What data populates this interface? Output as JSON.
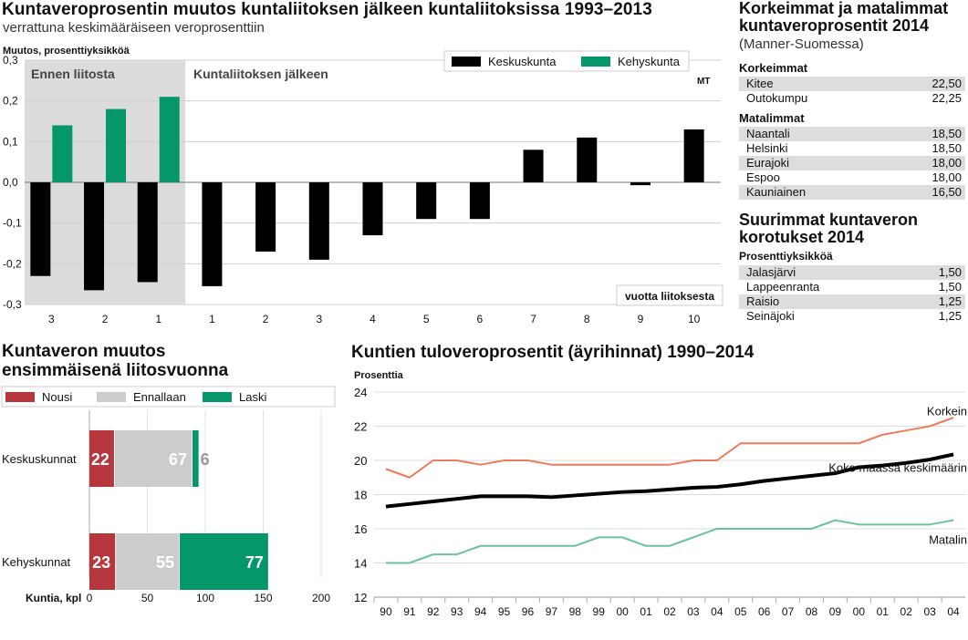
{
  "colors": {
    "black": "#000000",
    "green": "#059669",
    "red": "#b5373b",
    "gray": "#cccccc",
    "shade": "#dcdcdc",
    "orange": "#f07a5a",
    "mint": "#6cc49a",
    "row": "#dddddd"
  },
  "chart1": {
    "title": "Kuntaveroprosentin muutos kuntaliitoksen jälkeen kuntaliitoksissa 1993–2013",
    "subtitle": "verrattuna keskimääräiseen veroprosenttiin",
    "ylabel": "Muutos, prosenttiyksikköä",
    "region_before": "Ennen liitosta",
    "region_after": "Kuntaliitoksen jälkeen",
    "source": "MT",
    "xaxis_note": "vuotta liitoksesta"
  },
  "chart2": {
    "title_line1": "Kuntaveron muutos",
    "title_line2": "ensimmäisenä liitosvuonna",
    "xaxis_label": "Kuntia, kpl"
  },
  "chart3": {
    "title": "Kuntien tuloveroprosentit (äyrihinnat) 1990–2014",
    "ylabel": "Prosenttia"
  },
  "table": {
    "title_line1": "Korkeimmat ja matalimmat",
    "title_line2": "kuntaveroprosentit 2014",
    "subtitle": "(Manner-Suomessa)",
    "highest": {
      "heading": "Korkeimmat",
      "rows": [
        {
          "name": "Kitee",
          "value": "22,50"
        },
        {
          "name": "Outokumpu",
          "value": "22,25"
        }
      ]
    },
    "lowest": {
      "heading": "Matalimmat",
      "rows": [
        {
          "name": "Naantali",
          "value": "18,50"
        },
        {
          "name": "Helsinki",
          "value": "18,50"
        },
        {
          "name": "Eurajoki",
          "value": "18,00"
        },
        {
          "name": "Espoo",
          "value": "18,00"
        },
        {
          "name": "Kauniainen",
          "value": "16,50"
        }
      ]
    },
    "increases": {
      "title_line1": "Suurimmat kuntaveron",
      "title_line2": "korotukset 2014",
      "unit": "Prosenttiyksikköä",
      "rows": [
        {
          "name": "Jalasjärvi",
          "value": "1,50"
        },
        {
          "name": "Lappeenranta",
          "value": "1,50"
        },
        {
          "name": "Raisio",
          "value": "1,25"
        },
        {
          "name": "Seinäjoki",
          "value": "1,25"
        }
      ]
    }
  },
  "chart_data": [
    {
      "type": "bar",
      "title": "Kuntaveroprosentin muutos kuntaliitoksen jälkeen kuntaliitoksissa 1993–2013",
      "xlabel": "vuotta liitoksesta",
      "ylabel": "Muutos, prosenttiyksikköä",
      "ylim": [
        -0.3,
        0.3
      ],
      "yticks": [
        "0,3",
        "0,2",
        "0,1",
        "0,0",
        "-0,1",
        "-0,2",
        "-0,3"
      ],
      "categories": [
        "3",
        "2",
        "1",
        "1",
        "2",
        "3",
        "4",
        "5",
        "6",
        "7",
        "8",
        "9",
        "10"
      ],
      "legend": "top-right",
      "series": [
        {
          "name": "Keskuskunta",
          "color": "#000000",
          "values": [
            -0.23,
            -0.265,
            -0.245,
            -0.255,
            -0.17,
            -0.19,
            -0.13,
            -0.09,
            -0.09,
            0.08,
            0.11,
            -0.007,
            0.13
          ]
        },
        {
          "name": "Kehyskunta",
          "color": "#059669",
          "values": [
            0.14,
            0.18,
            0.21,
            null,
            null,
            null,
            null,
            null,
            null,
            null,
            null,
            null,
            null
          ]
        }
      ]
    },
    {
      "type": "bar",
      "orientation": "horizontal",
      "stacked": true,
      "title": "Kuntaveron muutos ensimmäisenä liitosvuonna",
      "xlabel": "Kuntia, kpl",
      "xlim": [
        0,
        200
      ],
      "xticks": [
        "0",
        "50",
        "100",
        "150",
        "200"
      ],
      "legend": "top",
      "categories": [
        "Keskuskunnat",
        "Kehyskunnat"
      ],
      "series": [
        {
          "name": "Nousi",
          "color": "#b5373b",
          "values": [
            22,
            23
          ]
        },
        {
          "name": "Ennallaan",
          "color": "#cccccc",
          "values": [
            67,
            55
          ]
        },
        {
          "name": "Laski",
          "color": "#059669",
          "values": [
            6,
            77
          ]
        }
      ]
    },
    {
      "type": "line",
      "title": "Kuntien tuloveroprosentit (äyrihinnat) 1990–2014",
      "ylabel": "Prosenttia",
      "ylim": [
        12,
        24
      ],
      "yticks": [
        "24",
        "22",
        "20",
        "18",
        "16",
        "14",
        "12"
      ],
      "x": [
        "90",
        "91",
        "92",
        "93",
        "94",
        "95",
        "96",
        "97",
        "98",
        "99",
        "00",
        "01",
        "02",
        "03",
        "04",
        "05",
        "06",
        "07",
        "08",
        "09",
        "00",
        "01",
        "02",
        "03",
        "04"
      ],
      "series": [
        {
          "name": "Korkein",
          "color": "#f07a5a",
          "values": [
            19.5,
            19.0,
            20.0,
            20.0,
            19.75,
            20.0,
            20.0,
            19.75,
            19.75,
            19.75,
            19.75,
            19.75,
            19.75,
            20.0,
            20.0,
            21.0,
            21.0,
            21.0,
            21.0,
            21.0,
            21.0,
            21.5,
            21.75,
            22.0,
            22.5
          ]
        },
        {
          "name": "Koko maassa keskimäärin",
          "color": "#000000",
          "values": [
            17.3,
            17.45,
            17.6,
            17.75,
            17.9,
            17.9,
            17.9,
            17.85,
            17.95,
            18.05,
            18.15,
            18.2,
            18.3,
            18.4,
            18.45,
            18.6,
            18.8,
            18.95,
            19.1,
            19.25,
            19.6,
            19.7,
            19.85,
            20.05,
            20.35
          ]
        },
        {
          "name": "Matalin",
          "color": "#6cc49a",
          "values": [
            14.0,
            14.0,
            14.5,
            14.5,
            15.0,
            15.0,
            15.0,
            15.0,
            15.0,
            15.5,
            15.5,
            15.0,
            15.0,
            15.5,
            16.0,
            16.0,
            16.0,
            16.0,
            16.0,
            16.5,
            16.25,
            16.25,
            16.25,
            16.25,
            16.5
          ]
        }
      ]
    }
  ]
}
